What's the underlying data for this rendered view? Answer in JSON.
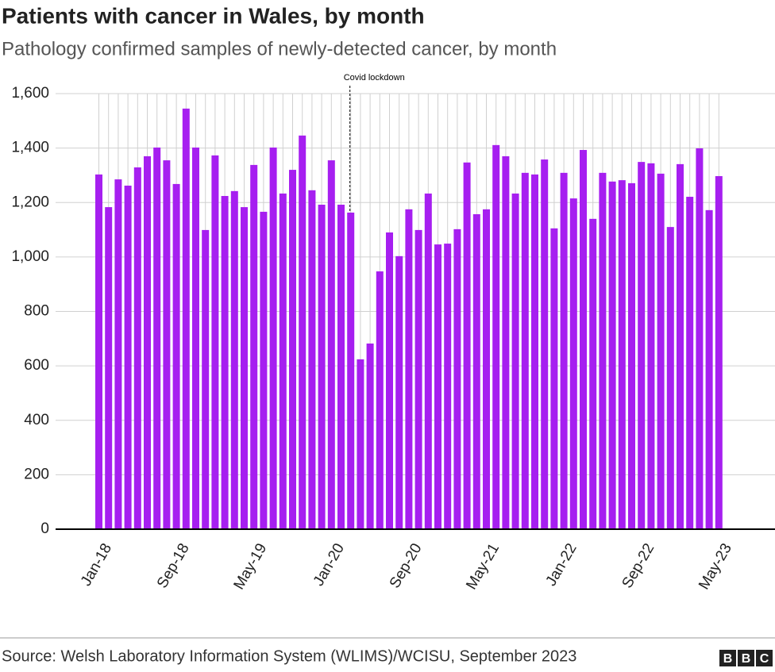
{
  "chart_data": {
    "type": "bar",
    "title": "Patients with cancer in Wales, by month",
    "subtitle": "Pathology confirmed samples of newly-detected cancer, by month",
    "annotation": "Covid lockdown",
    "source": "Source: Welsh Laboratory Information System (WLIMS)/WCISU, September 2023",
    "logo": [
      "B",
      "B",
      "C"
    ],
    "categories": [
      "Jan-18",
      null,
      null,
      null,
      null,
      null,
      null,
      null,
      "Sep-18",
      null,
      null,
      null,
      null,
      null,
      null,
      null,
      "May-19",
      null,
      null,
      null,
      null,
      null,
      null,
      null,
      "Jan-20",
      null,
      null,
      null,
      null,
      null,
      null,
      null,
      "Sep-20",
      null,
      null,
      null,
      null,
      null,
      null,
      null,
      "May-21",
      null,
      null,
      null,
      null,
      null,
      null,
      null,
      "Jan-22",
      null,
      null,
      null,
      null,
      null,
      null,
      null,
      "Sep-22",
      null,
      null,
      null,
      null,
      null,
      null,
      null,
      "May-23"
    ],
    "values": [
      1303,
      1183,
      1285,
      1262,
      1329,
      1370,
      1402,
      1355,
      1268,
      1545,
      1402,
      1099,
      1373,
      1224,
      1242,
      1183,
      1338,
      1166,
      1402,
      1233,
      1320,
      1446,
      1245,
      1192,
      1355,
      1192,
      1163,
      624,
      682,
      947,
      1090,
      1003,
      1175,
      1099,
      1233,
      1046,
      1049,
      1102,
      1347,
      1157,
      1175,
      1411,
      1370,
      1233,
      1309,
      1303,
      1358,
      1105,
      1309,
      1215,
      1393,
      1140,
      1309,
      1277,
      1282,
      1271,
      1349,
      1344,
      1306,
      1110,
      1341,
      1221,
      1399,
      1172,
      1297
    ],
    "color": "#a61ff0",
    "ylim": [
      0,
      1600
    ],
    "yticks": [
      0,
      200,
      400,
      600,
      800,
      {
        "value": 1000,
        "label": "1,000"
      },
      {
        "value": 1200,
        "label": "1,200"
      },
      {
        "value": 1400,
        "label": "1,400"
      },
      {
        "value": 1600,
        "label": "1,600"
      }
    ],
    "grid": true
  }
}
